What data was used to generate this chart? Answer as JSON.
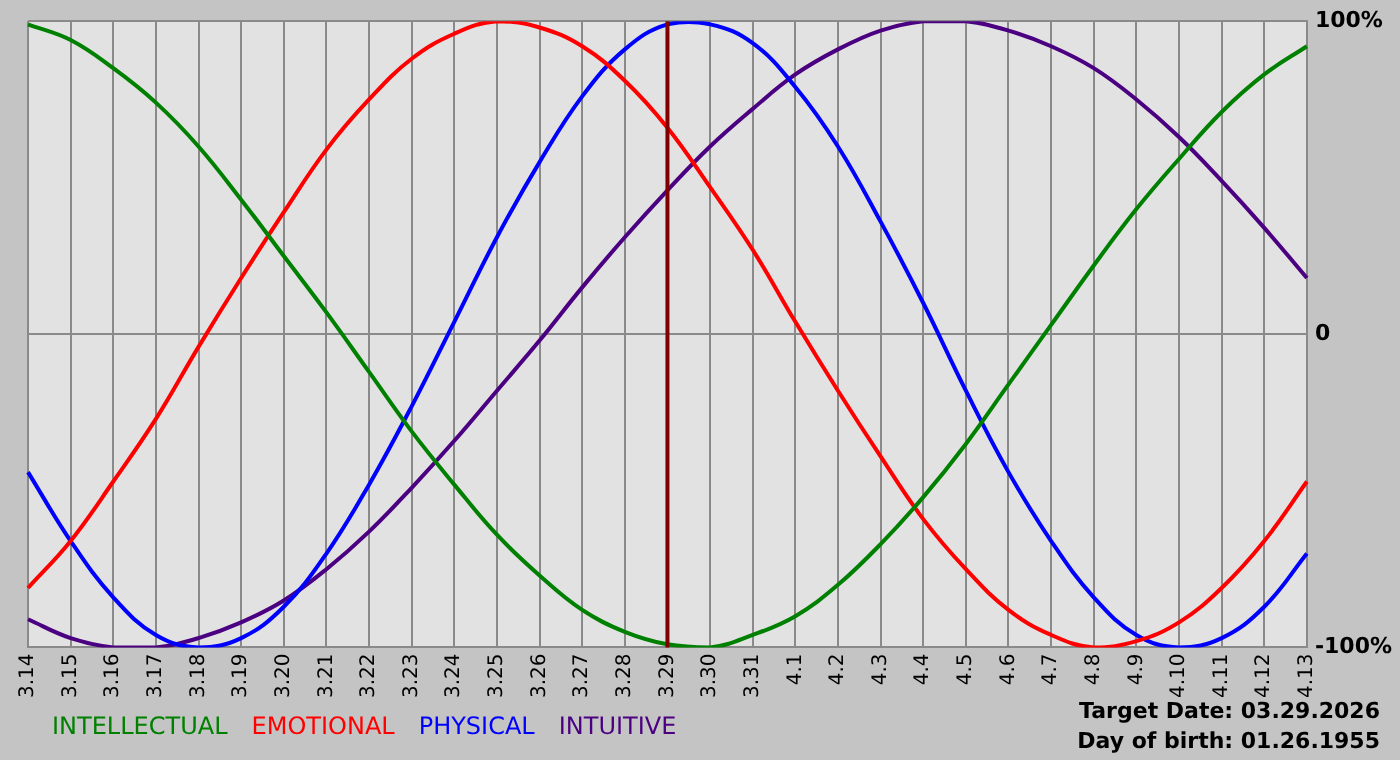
{
  "chart_data": {
    "type": "line",
    "categories": [
      "3.14",
      "3.15",
      "3.16",
      "3.17",
      "3.18",
      "3.19",
      "3.20",
      "3.21",
      "3.22",
      "3.23",
      "3.24",
      "3.25",
      "3.26",
      "3.27",
      "3.28",
      "3.29",
      "3.30",
      "3.31",
      "4.1",
      "4.2",
      "4.3",
      "4.4",
      "4.5",
      "4.6",
      "4.7",
      "4.8",
      "4.9",
      "4.10",
      "4.11",
      "4.12",
      "4.13"
    ],
    "series": [
      {
        "name": "INTELLECTUAL",
        "color": "#008000",
        "values": [
          99,
          94,
          85,
          74,
          60,
          43,
          25,
          7,
          -12,
          -31,
          -48,
          -64,
          -77,
          -88,
          -95,
          -99,
          -100,
          -96,
          -90,
          -80,
          -67,
          -52,
          -35,
          -16,
          3,
          22,
          40,
          56,
          71,
          83,
          92
        ]
      },
      {
        "name": "EMOTIONAL",
        "color": "#ff0000",
        "values": [
          -81,
          -66,
          -47,
          -27,
          -4,
          18,
          39,
          59,
          75,
          88,
          96,
          100,
          98,
          92,
          81,
          66,
          47,
          27,
          4,
          -18,
          -39,
          -59,
          -75,
          -88,
          -96,
          -100,
          -98,
          -92,
          -81,
          -66,
          -47
        ]
      },
      {
        "name": "PHYSICAL",
        "color": "#0000ff",
        "values": [
          -44,
          -66,
          -84,
          -96,
          -100,
          -97,
          -87,
          -70,
          -48,
          -23,
          4,
          31,
          55,
          76,
          91,
          99,
          99,
          93,
          79,
          60,
          36,
          10,
          -18,
          -44,
          -66,
          -84,
          -96,
          -100,
          -97,
          -87,
          -70
        ]
      },
      {
        "name": "INTUITIVE",
        "color": "#4b0082",
        "values": [
          -91,
          -97,
          -100,
          -100,
          -97,
          -92,
          -85,
          -75,
          -63,
          -49,
          -34,
          -18,
          -2,
          15,
          31,
          46,
          60,
          72,
          83,
          91,
          97,
          100,
          100,
          97,
          92,
          85,
          75,
          63,
          49,
          34,
          18
        ]
      }
    ],
    "ylim": [
      -100,
      100
    ],
    "yticks": [
      {
        "value": -100,
        "label": "-100%"
      },
      {
        "value": 0,
        "label": "0"
      },
      {
        "value": 100,
        "label": "100%"
      }
    ],
    "grid": true,
    "legend": "bottom left",
    "marker": "none",
    "ref_lines": [
      {
        "axis": "x",
        "value": "3.29",
        "color": "#800000"
      }
    ],
    "annotations": [
      "Target Date: 03.29.2026",
      "Day of birth: 01.26.1955"
    ]
  }
}
